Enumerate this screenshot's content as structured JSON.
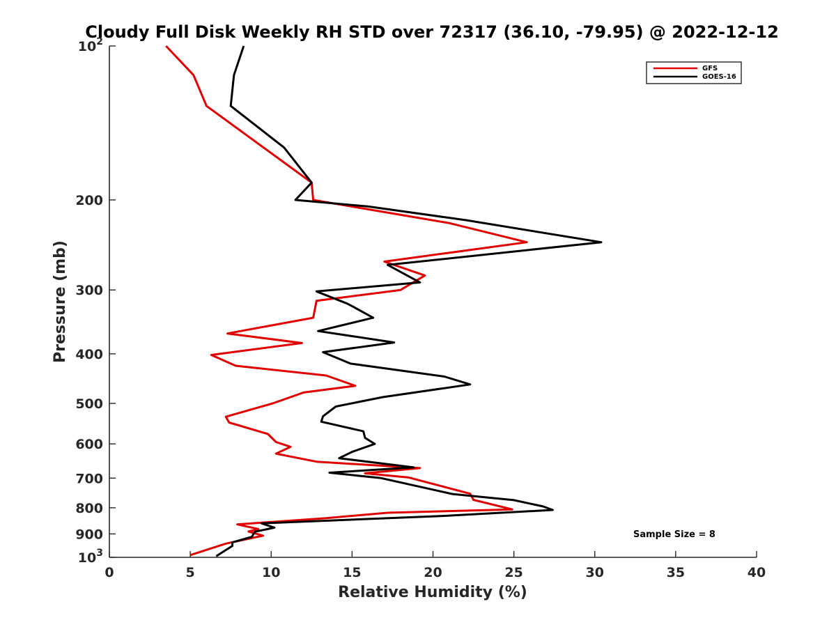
{
  "chart_data": {
    "type": "line",
    "title": "Cloudy Full Disk Weekly RH STD over 72317 (36.10, -79.95) @ 2022-12-12",
    "xlabel": "Relative Humidity (%)",
    "ylabel": "Pressure (mb)",
    "xlim": [
      0,
      40
    ],
    "ylim": [
      100,
      1000
    ],
    "yscale": "log",
    "yreversed": true,
    "grid": false,
    "legend_position": "top-right",
    "x_ticks": [
      "0",
      "5",
      "10",
      "15",
      "20",
      "25",
      "30",
      "35",
      "40"
    ],
    "y_ticks": [
      {
        "value": 100,
        "base": "10",
        "exp": "2"
      },
      {
        "value": 200,
        "label": "200"
      },
      {
        "value": 300,
        "label": "300"
      },
      {
        "value": 400,
        "label": "400"
      },
      {
        "value": 500,
        "label": "500"
      },
      {
        "value": 600,
        "label": "600"
      },
      {
        "value": 700,
        "label": "700"
      },
      {
        "value": 800,
        "label": "800"
      },
      {
        "value": 900,
        "label": "900"
      },
      {
        "value": 1000,
        "base": "10",
        "exp": "3"
      }
    ],
    "annotation": "Sample Size = 8",
    "series": [
      {
        "name": "GFS",
        "color": "#e00000",
        "points": [
          [
            3.5,
            100
          ],
          [
            5.2,
            114
          ],
          [
            6.0,
            131
          ],
          [
            12.5,
            185
          ],
          [
            12.6,
            200
          ],
          [
            21.0,
            222
          ],
          [
            25.8,
            242
          ],
          [
            17.0,
            264
          ],
          [
            19.5,
            281
          ],
          [
            18.0,
            300
          ],
          [
            12.8,
            315
          ],
          [
            12.6,
            340
          ],
          [
            7.3,
            365
          ],
          [
            11.9,
            381
          ],
          [
            6.3,
            402
          ],
          [
            7.8,
            422
          ],
          [
            13.4,
            441
          ],
          [
            15.2,
            462
          ],
          [
            12.0,
            476
          ],
          [
            10.1,
            500
          ],
          [
            7.2,
            531
          ],
          [
            7.4,
            545
          ],
          [
            9.8,
            574
          ],
          [
            10.3,
            595
          ],
          [
            11.2,
            608
          ],
          [
            10.3,
            627
          ],
          [
            12.8,
            650
          ],
          [
            19.2,
            669
          ],
          [
            15.8,
            685
          ],
          [
            18.5,
            698
          ],
          [
            22.3,
            751
          ],
          [
            22.5,
            772
          ],
          [
            24.9,
            806
          ],
          [
            17.2,
            818
          ],
          [
            13.4,
            838
          ],
          [
            7.9,
            862
          ],
          [
            9.2,
            880
          ],
          [
            8.6,
            890
          ],
          [
            9.5,
            907
          ],
          [
            7.2,
            940
          ],
          [
            5.0,
            990
          ]
        ]
      },
      {
        "name": "GOES-16",
        "color": "#000000",
        "points": [
          [
            8.3,
            100
          ],
          [
            7.7,
            114
          ],
          [
            7.5,
            131
          ],
          [
            10.8,
            158
          ],
          [
            12.5,
            185
          ],
          [
            11.5,
            200
          ],
          [
            16.0,
            206
          ],
          [
            22.0,
            219
          ],
          [
            30.4,
            242
          ],
          [
            17.2,
            268
          ],
          [
            19.2,
            290
          ],
          [
            12.8,
            302
          ],
          [
            14.7,
            319
          ],
          [
            15.1,
            324
          ],
          [
            16.3,
            340
          ],
          [
            12.9,
            361
          ],
          [
            17.6,
            380
          ],
          [
            13.2,
            397
          ],
          [
            14.9,
            418
          ],
          [
            20.7,
            443
          ],
          [
            22.3,
            459
          ],
          [
            16.9,
            486
          ],
          [
            14.0,
            507
          ],
          [
            13.2,
            530
          ],
          [
            13.1,
            543
          ],
          [
            15.7,
            567
          ],
          [
            15.8,
            584
          ],
          [
            16.4,
            600
          ],
          [
            15.0,
            622
          ],
          [
            14.2,
            640
          ],
          [
            18.8,
            667
          ],
          [
            13.6,
            683
          ],
          [
            16.8,
            700
          ],
          [
            21.2,
            752
          ],
          [
            25.0,
            773
          ],
          [
            26.8,
            795
          ],
          [
            27.4,
            808
          ],
          [
            20.6,
            830
          ],
          [
            9.4,
            858
          ],
          [
            10.2,
            875
          ],
          [
            9.0,
            891
          ],
          [
            8.8,
            912
          ],
          [
            7.6,
            935
          ],
          [
            7.6,
            950
          ],
          [
            6.6,
            995
          ]
        ]
      }
    ]
  }
}
